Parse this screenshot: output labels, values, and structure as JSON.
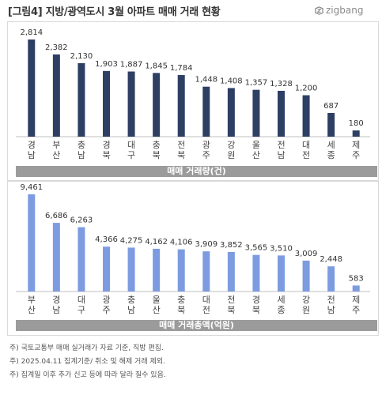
{
  "header": {
    "title": "[그림4] 지방/광역도시 3월 아파트 매매 거래 현황",
    "logo_text": "zigbang"
  },
  "chart_data": [
    {
      "type": "bar",
      "title": "매매 거래량(건)",
      "categories": [
        "경남",
        "부산",
        "충남",
        "경북",
        "대구",
        "충북",
        "전북",
        "광주",
        "강원",
        "울산",
        "전남",
        "대전",
        "세종",
        "제주"
      ],
      "values": [
        2814,
        2382,
        2130,
        1903,
        1887,
        1845,
        1784,
        1448,
        1408,
        1357,
        1328,
        1200,
        687,
        180
      ],
      "value_labels": [
        "2,814",
        "2,382",
        "2,130",
        "1,903",
        "1,887",
        "1,845",
        "1,784",
        "1,448",
        "1,408",
        "1,357",
        "1,328",
        "1,200",
        "687",
        "180"
      ],
      "ylim": [
        0,
        2814
      ],
      "color": "#2e3f64",
      "grid": false
    },
    {
      "type": "bar",
      "title": "매매 거래총액(억원)",
      "categories": [
        "부산",
        "경남",
        "대구",
        "광주",
        "충남",
        "울산",
        "충북",
        "대전",
        "전북",
        "경북",
        "세종",
        "강원",
        "전남",
        "제주"
      ],
      "values": [
        9461,
        6686,
        6263,
        4366,
        4275,
        4162,
        4106,
        3909,
        3852,
        3565,
        3510,
        3009,
        2448,
        583
      ],
      "value_labels": [
        "9,461",
        "6,686",
        "6,263",
        "4,366",
        "4,275",
        "4,162",
        "4,106",
        "3,909",
        "3,852",
        "3,565",
        "3,510",
        "3,009",
        "2,448",
        "583"
      ],
      "ylim": [
        0,
        9461
      ],
      "color": "#7d9be0",
      "grid": false
    }
  ],
  "notes": [
    "주) 국토교통부 매매 실거래가 자료 기준, 직방 편집.",
    "주) 2025.04.11 집계기준/ 취소 및 해제 거래 제외.",
    "주) 집계일 이후 추가 신고 등에 따라 달라 질수 있음."
  ]
}
